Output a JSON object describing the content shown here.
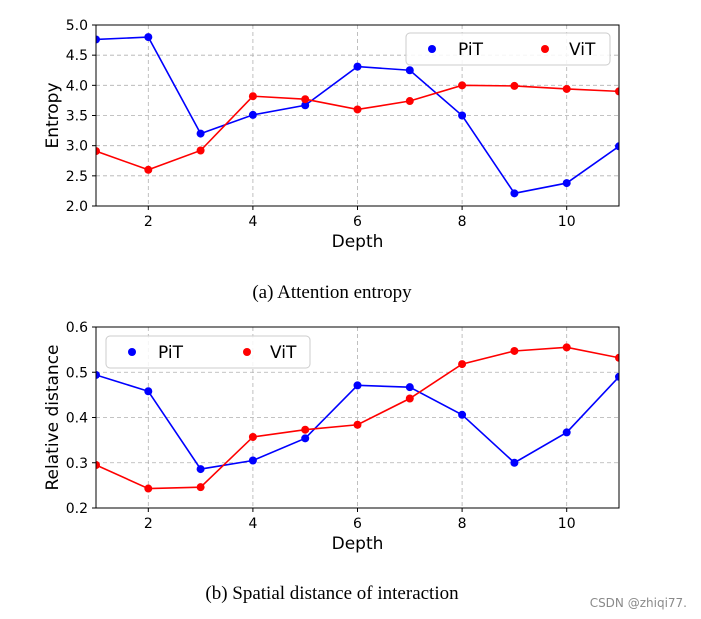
{
  "chart_data": [
    {
      "type": "line",
      "x": [
        1,
        2,
        3,
        4,
        5,
        6,
        7,
        8,
        9,
        10,
        11
      ],
      "series": [
        {
          "name": "PiT",
          "color": "#0000ff",
          "values": [
            4.76,
            4.8,
            3.2,
            3.51,
            3.67,
            4.31,
            4.25,
            3.5,
            2.21,
            2.38,
            2.99
          ]
        },
        {
          "name": "ViT",
          "color": "#ff0000",
          "values": [
            2.91,
            2.6,
            2.92,
            3.82,
            3.77,
            3.6,
            3.74,
            4.0,
            3.99,
            3.94,
            3.9
          ]
        }
      ],
      "xlabel": "Depth",
      "ylabel": "Entropy",
      "xlim": [
        1,
        11
      ],
      "ylim": [
        2.0,
        5.0
      ],
      "xticks": [
        "2",
        "4",
        "6",
        "8",
        "10"
      ],
      "yticks": [
        "2.0",
        "2.5",
        "3.0",
        "3.5",
        "4.0",
        "4.5",
        "5.0"
      ],
      "grid": true,
      "legend_position": "top-right",
      "caption": "(a) Attention entropy"
    },
    {
      "type": "line",
      "x": [
        1,
        2,
        3,
        4,
        5,
        6,
        7,
        8,
        9,
        10,
        11
      ],
      "series": [
        {
          "name": "PiT",
          "color": "#0000ff",
          "values": [
            0.494,
            0.458,
            0.286,
            0.305,
            0.354,
            0.471,
            0.467,
            0.406,
            0.3,
            0.367,
            0.49
          ]
        },
        {
          "name": "ViT",
          "color": "#ff0000",
          "values": [
            0.295,
            0.243,
            0.246,
            0.357,
            0.373,
            0.384,
            0.442,
            0.518,
            0.547,
            0.555,
            0.532
          ]
        }
      ],
      "xlabel": "Depth",
      "ylabel": "Relative distance",
      "xlim": [
        1,
        11
      ],
      "ylim": [
        0.2,
        0.6
      ],
      "xticks": [
        "2",
        "4",
        "6",
        "8",
        "10"
      ],
      "yticks": [
        "0.2",
        "0.3",
        "0.4",
        "0.5",
        "0.6"
      ],
      "grid": true,
      "legend_position": "top-left",
      "caption": "(b) Spatial distance of interaction"
    }
  ],
  "watermark": "CSDN @zhiqi77."
}
